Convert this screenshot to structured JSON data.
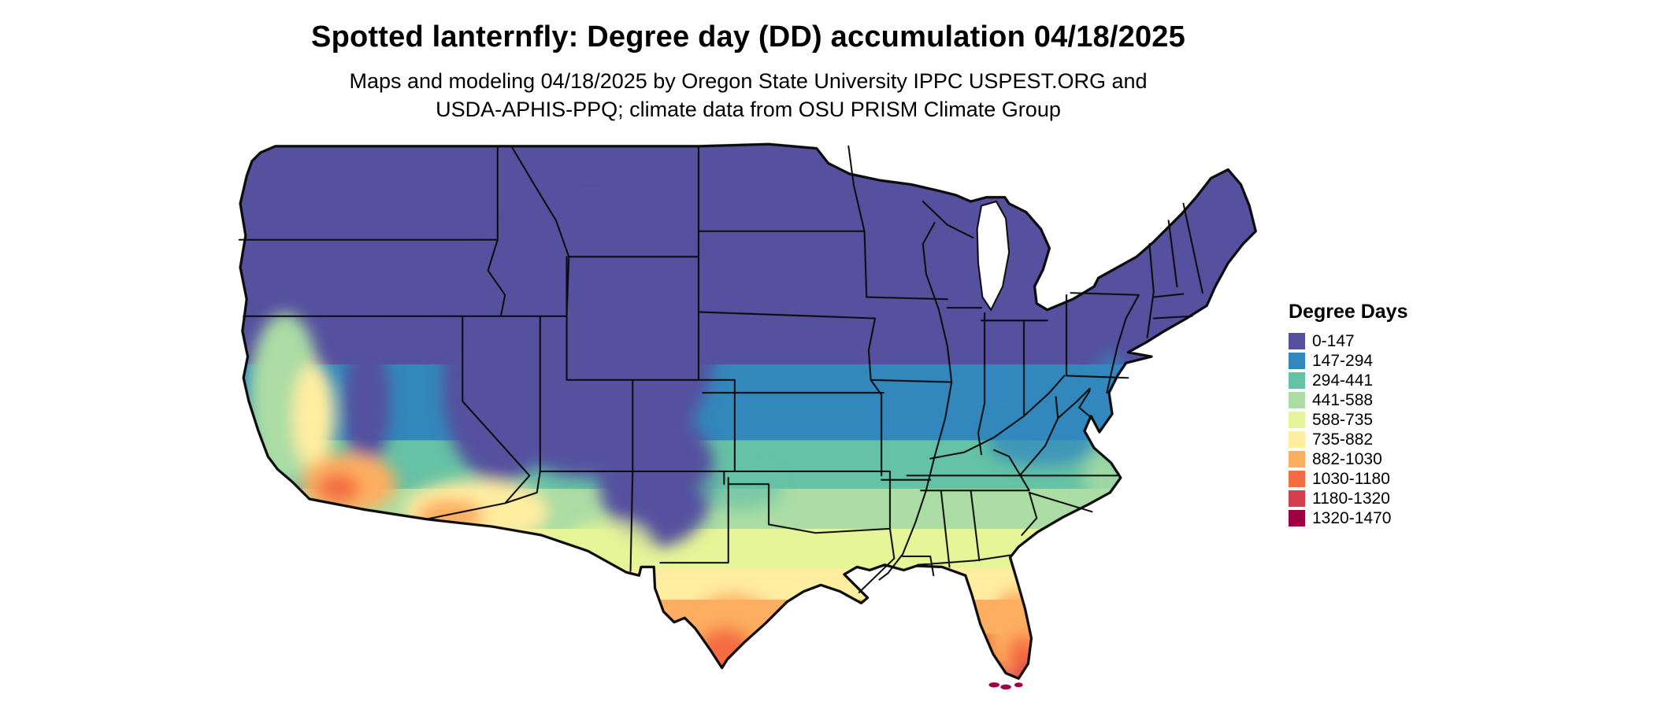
{
  "header": {
    "title": "Spotted lanternfly: Degree day (DD) accumulation 04/18/2025",
    "subtitle_line1": "Maps and modeling 04/18/2025 by Oregon State University IPPC USPEST.ORG and",
    "subtitle_line2": "USDA-APHIS-PPQ; climate data from OSU PRISM Climate Group"
  },
  "legend": {
    "title": "Degree Days",
    "items": [
      {
        "label": "0-147",
        "color": "#55519f"
      },
      {
        "label": "147-294",
        "color": "#3288bd"
      },
      {
        "label": "294-441",
        "color": "#66c2a5"
      },
      {
        "label": "441-588",
        "color": "#abdda4"
      },
      {
        "label": "588-735",
        "color": "#e6f598"
      },
      {
        "label": "735-882",
        "color": "#ffeda0"
      },
      {
        "label": "882-1030",
        "color": "#fdae61"
      },
      {
        "label": "1030-1180",
        "color": "#f46d43"
      },
      {
        "label": "1180-1320",
        "color": "#d53e4f"
      },
      {
        "label": "1320-1470",
        "color": "#9e0142"
      }
    ]
  },
  "map": {
    "region": "Contiguous United States",
    "description": "Choropleth map of accumulated degree days for spotted lanternfly, cool (purple) in the north and mountains grading to hot (orange/red) in south Texas and south Florida"
  },
  "chart_data": {
    "type": "heatmap",
    "subtype": "choropleth-map",
    "title": "Spotted lanternfly: Degree day (DD) accumulation 04/18/2025",
    "subtitle": "Maps and modeling 04/18/2025 by Oregon State University IPPC USPEST.ORG and USDA-APHIS-PPQ; climate data from OSU PRISM Climate Group",
    "legend_title": "Degree Days",
    "bins": [
      "0-147",
      "147-294",
      "294-441",
      "441-588",
      "588-735",
      "735-882",
      "882-1030",
      "1030-1180",
      "1180-1320",
      "1320-1470"
    ],
    "bin_colors": [
      "#55519f",
      "#3288bd",
      "#66c2a5",
      "#abdda4",
      "#e6f598",
      "#ffeda0",
      "#fdae61",
      "#f46d43",
      "#d53e4f",
      "#9e0142"
    ],
    "value_range": [
      0,
      1470
    ],
    "legend_position": "right"
  }
}
